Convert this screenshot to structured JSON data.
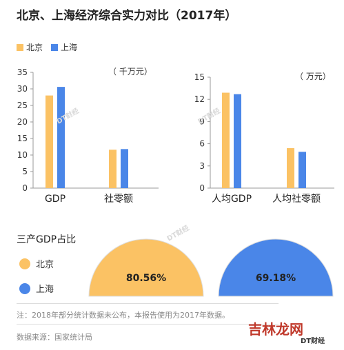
{
  "title": "北京、上海经济综合实力对比（2017年）",
  "colors": {
    "beijing": "#FBC264",
    "shanghai": "#4A86E8",
    "axis": "#999999"
  },
  "legend": [
    {
      "label": "北京",
      "color": "#FBC264"
    },
    {
      "label": "上海",
      "color": "#4A86E8"
    }
  ],
  "chart_data": [
    {
      "type": "bar",
      "unit": "（  千万元）",
      "categories": [
        "GDP",
        "社零额"
      ],
      "ylim": [
        0,
        35
      ],
      "yticks": [
        0,
        5,
        10,
        15,
        20,
        25,
        30,
        35
      ],
      "series": [
        {
          "name": "北京",
          "values": [
            28.0,
            11.6
          ]
        },
        {
          "name": "上海",
          "values": [
            30.6,
            11.8
          ]
        }
      ]
    },
    {
      "type": "bar",
      "unit": "（  万元）",
      "categories": [
        "人均GDP",
        "人均社零额"
      ],
      "ylim": [
        0,
        15
      ],
      "yticks": [
        0,
        3,
        6,
        9,
        12,
        15
      ],
      "series": [
        {
          "name": "北京",
          "values": [
            12.9,
            5.4
          ]
        },
        {
          "name": "上海",
          "values": [
            12.7,
            4.9
          ]
        }
      ]
    },
    {
      "type": "pie",
      "title": "三产GDP占比",
      "items": [
        {
          "name": "北京",
          "value": 80.56,
          "label": "80.56%"
        },
        {
          "name": "上海",
          "value": 69.18,
          "label": "69.18%"
        }
      ]
    }
  ],
  "notes": {
    "note1": "注：2018年部分统计数据未公布，本报告使用为2017年数据。",
    "source": "数据来源：国家统计局"
  },
  "watermark": {
    "brand": "DT财经",
    "site": "吉林龙网"
  }
}
